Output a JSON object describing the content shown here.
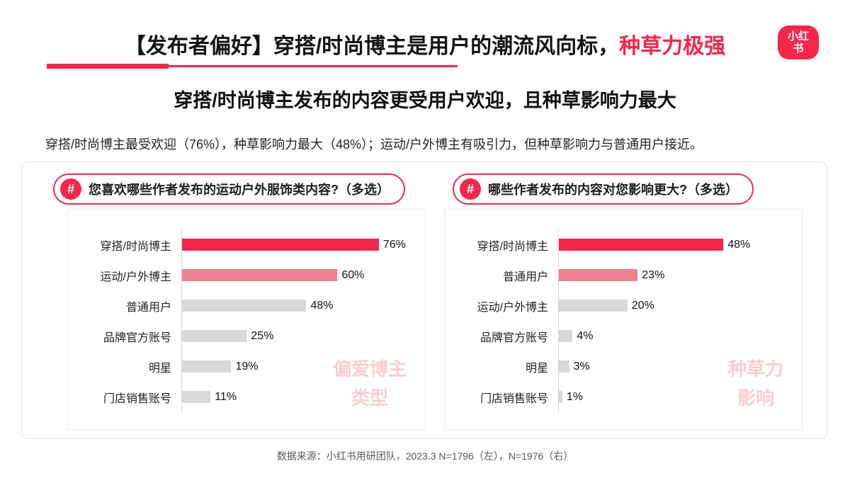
{
  "header": {
    "title_main": "【发布者偏好】穿搭/时尚博主是用户的潮流风向标，",
    "title_accent": "种草力极强",
    "logo_text": "小红书",
    "subtitle": "穿搭/时尚博主发布的内容更受用户欢迎，且种草影响力最大",
    "lead": "穿搭/时尚博主最受欢迎（76%），种草影响力最大（48%）；运动/户外博主有吸引力，但种草影响力与普通用户接近。"
  },
  "footer": {
    "source": "数据来源：小红书用研团队，2023.3 N=1796（左），N=1976（右）"
  },
  "colors": {
    "red": "#f5264a",
    "pink": "#ef8090",
    "gray": "#d9d9d9",
    "watermark": "#f8ced4"
  },
  "chart_data": [
    {
      "type": "bar",
      "title": "您喜欢哪些作者发布的运动户外服饰类内容?（多选）",
      "badge": "#",
      "categories": [
        "穿搭/时尚博主",
        "运动/户外博主",
        "普通用户",
        "品牌官方账号",
        "明星",
        "门店销售账号"
      ],
      "values": [
        76,
        60,
        48,
        25,
        19,
        11
      ],
      "value_labels": [
        "76%",
        "60%",
        "48%",
        "25%",
        "19%",
        "11%"
      ],
      "bar_colors": [
        "red",
        "pink",
        "gray",
        "gray",
        "gray",
        "gray"
      ],
      "scale_max": 90,
      "xlim": [
        0,
        90
      ],
      "orientation": "horizontal",
      "grid": false,
      "legend": false,
      "watermark_lines": [
        "偏爱博主",
        "类型"
      ]
    },
    {
      "type": "bar",
      "title": "哪些作者发布的内容对您影响更大?（多选）",
      "badge": "#",
      "categories": [
        "穿搭/时尚博主",
        "普通用户",
        "运动/户外博主",
        "品牌官方账号",
        "明星",
        "门店销售账号"
      ],
      "values": [
        48,
        23,
        20,
        4,
        3,
        1
      ],
      "value_labels": [
        "48%",
        "23%",
        "20%",
        "4%",
        "3%",
        "1%"
      ],
      "bar_colors": [
        "red",
        "pink",
        "gray",
        "gray",
        "gray",
        "gray"
      ],
      "scale_max": 68,
      "xlim": [
        0,
        68
      ],
      "orientation": "horizontal",
      "grid": false,
      "legend": false,
      "watermark_lines": [
        "种草力",
        "影响"
      ]
    }
  ]
}
